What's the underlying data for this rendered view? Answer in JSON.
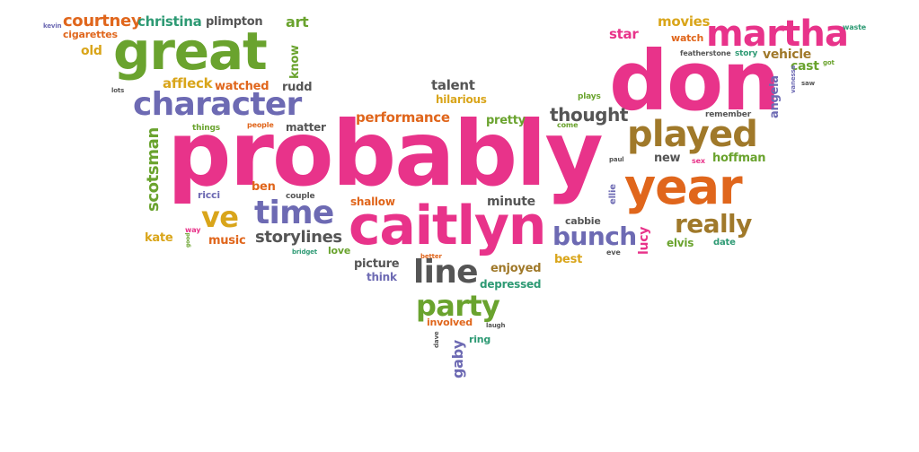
{
  "palette": {
    "pink": "#e8338a",
    "green": "#6aa32e",
    "purple": "#6d6ab3",
    "orange": "#e0661c",
    "gold": "#d9a51a",
    "brown": "#a0792a",
    "teal": "#2e9a74",
    "gray": "#555555"
  },
  "words": [
    {
      "text": "probably",
      "color": "#e8338a"
    },
    {
      "text": "don",
      "color": "#e8338a"
    },
    {
      "text": "caitlyn",
      "color": "#e8338a"
    },
    {
      "text": "great",
      "color": "#6aa32e"
    },
    {
      "text": "martha",
      "color": "#e8338a"
    },
    {
      "text": "year",
      "color": "#e0661c"
    },
    {
      "text": "played",
      "color": "#a0792a"
    },
    {
      "text": "character",
      "color": "#6d6ab3"
    },
    {
      "text": "line",
      "color": "#555555"
    },
    {
      "text": "time",
      "color": "#6d6ab3"
    },
    {
      "text": "ve",
      "color": "#d9a51a"
    },
    {
      "text": "party",
      "color": "#6aa32e"
    },
    {
      "text": "bunch",
      "color": "#6d6ab3"
    },
    {
      "text": "really",
      "color": "#a0792a"
    },
    {
      "text": "storylines",
      "color": "#555555"
    },
    {
      "text": "thought",
      "color": "#555555"
    },
    {
      "text": "scotsman",
      "color": "#6aa32e"
    },
    {
      "text": "courtney",
      "color": "#e0661c"
    },
    {
      "text": "christina",
      "color": "#2e9a74"
    },
    {
      "text": "plimpton",
      "color": "#555555"
    },
    {
      "text": "art",
      "color": "#6aa32e"
    },
    {
      "text": "movies",
      "color": "#d9a51a"
    },
    {
      "text": "star",
      "color": "#e8338a"
    },
    {
      "text": "watch",
      "color": "#e0661c"
    },
    {
      "text": "waste",
      "color": "#2e9a74"
    },
    {
      "text": "cigarettes",
      "color": "#e0661c"
    },
    {
      "text": "old",
      "color": "#d9a51a"
    },
    {
      "text": "kevin",
      "color": "#6d6ab3"
    },
    {
      "text": "know",
      "color": "#6aa32e"
    },
    {
      "text": "affleck",
      "color": "#d9a51a"
    },
    {
      "text": "watched",
      "color": "#e0661c"
    },
    {
      "text": "rudd",
      "color": "#555555"
    },
    {
      "text": "talent",
      "color": "#555555"
    },
    {
      "text": "hilarious",
      "color": "#d9a51a"
    },
    {
      "text": "performance",
      "color": "#e0661c"
    },
    {
      "text": "matter",
      "color": "#555555"
    },
    {
      "text": "pretty",
      "color": "#6aa32e"
    },
    {
      "text": "plays",
      "color": "#6aa32e"
    },
    {
      "text": "come",
      "color": "#6aa32e"
    },
    {
      "text": "featherstone",
      "color": "#555555"
    },
    {
      "text": "story",
      "color": "#2e9a74"
    },
    {
      "text": "vehicle",
      "color": "#a0792a"
    },
    {
      "text": "cast",
      "color": "#6aa32e"
    },
    {
      "text": "got",
      "color": "#6aa32e"
    },
    {
      "text": "saw",
      "color": "#555555"
    },
    {
      "text": "angela",
      "color": "#6d6ab3"
    },
    {
      "text": "vanessa",
      "color": "#6d6ab3"
    },
    {
      "text": "remember",
      "color": "#555555"
    },
    {
      "text": "hoffman",
      "color": "#6aa32e"
    },
    {
      "text": "sex",
      "color": "#e8338a"
    },
    {
      "text": "new",
      "color": "#555555"
    },
    {
      "text": "paul",
      "color": "#555555"
    },
    {
      "text": "lots",
      "color": "#555555"
    },
    {
      "text": "things",
      "color": "#6aa32e"
    },
    {
      "text": "people",
      "color": "#e0661c"
    },
    {
      "text": "ricci",
      "color": "#6d6ab3"
    },
    {
      "text": "ben",
      "color": "#e0661c"
    },
    {
      "text": "couple",
      "color": "#555555"
    },
    {
      "text": "shallow",
      "color": "#e0661c"
    },
    {
      "text": "minute",
      "color": "#555555"
    },
    {
      "text": "cabbie",
      "color": "#555555"
    },
    {
      "text": "ellie",
      "color": "#6d6ab3"
    },
    {
      "text": "lucy",
      "color": "#e8338a"
    },
    {
      "text": "elvis",
      "color": "#6aa32e"
    },
    {
      "text": "date",
      "color": "#2e9a74"
    },
    {
      "text": "kate",
      "color": "#d9a51a"
    },
    {
      "text": "way",
      "color": "#e8338a"
    },
    {
      "text": "good",
      "color": "#6aa32e"
    },
    {
      "text": "music",
      "color": "#e0661c"
    },
    {
      "text": "bridget",
      "color": "#2e9a74"
    },
    {
      "text": "love",
      "color": "#6aa32e"
    },
    {
      "text": "picture",
      "color": "#555555"
    },
    {
      "text": "better",
      "color": "#e0661c"
    },
    {
      "text": "think",
      "color": "#6d6ab3"
    },
    {
      "text": "enjoyed",
      "color": "#a0792a"
    },
    {
      "text": "best",
      "color": "#d9a51a"
    },
    {
      "text": "eve",
      "color": "#555555"
    },
    {
      "text": "depressed",
      "color": "#2e9a74"
    },
    {
      "text": "involved",
      "color": "#e0661c"
    },
    {
      "text": "laugh",
      "color": "#555555"
    },
    {
      "text": "ring",
      "color": "#2e9a74"
    },
    {
      "text": "dave",
      "color": "#555555"
    },
    {
      "text": "gaby",
      "color": "#6d6ab3"
    }
  ]
}
